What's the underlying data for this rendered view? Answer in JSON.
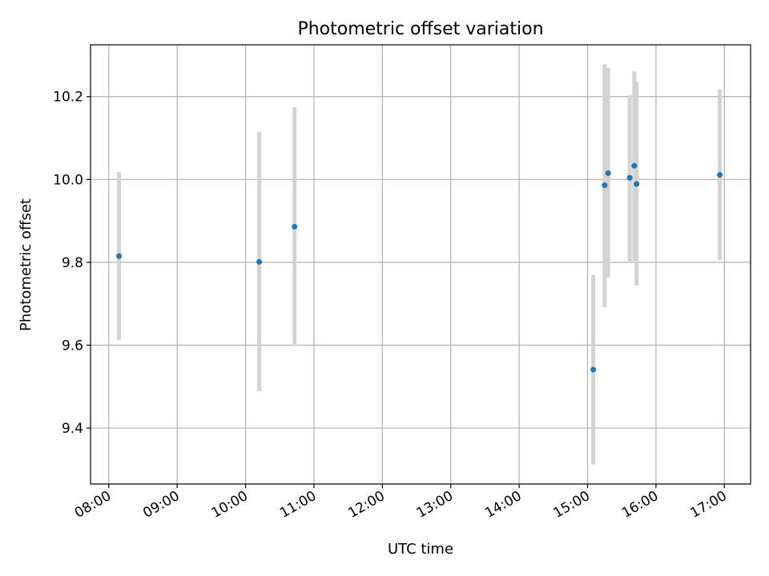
{
  "chart_data": {
    "type": "scatter",
    "title": "Photometric offset variation",
    "xlabel": "UTC time",
    "ylabel": "Photometric offset",
    "x_unit": "hours UTC",
    "xlim": [
      "07:44",
      "17:23"
    ],
    "ylim": [
      9.265,
      10.325
    ],
    "grid": true,
    "x_ticks": [
      "08:00",
      "09:00",
      "10:00",
      "11:00",
      "12:00",
      "13:00",
      "14:00",
      "15:00",
      "16:00",
      "17:00"
    ],
    "y_ticks": [
      "9.4",
      "9.6",
      "9.8",
      "10.0",
      "10.2"
    ],
    "marker_color": "#1f77b4",
    "errorbar_color": "#d3d3d3",
    "points": [
      {
        "time": "08:09",
        "y": 9.815,
        "y_low": 9.612,
        "y_high": 10.018
      },
      {
        "time": "10:12",
        "y": 9.801,
        "y_low": 9.489,
        "y_high": 10.115
      },
      {
        "time": "10:43",
        "y": 9.886,
        "y_low": 9.598,
        "y_high": 10.174
      },
      {
        "time": "15:05",
        "y": 9.541,
        "y_low": 9.312,
        "y_high": 9.77
      },
      {
        "time": "15:15",
        "y": 9.986,
        "y_low": 9.692,
        "y_high": 10.278
      },
      {
        "time": "15:18",
        "y": 10.015,
        "y_low": 9.763,
        "y_high": 10.269
      },
      {
        "time": "15:37",
        "y": 10.004,
        "y_low": 9.8,
        "y_high": 10.204
      },
      {
        "time": "15:41",
        "y": 10.033,
        "y_low": 9.804,
        "y_high": 10.261
      },
      {
        "time": "15:43",
        "y": 9.989,
        "y_low": 9.744,
        "y_high": 10.235
      },
      {
        "time": "16:56",
        "y": 10.011,
        "y_low": 9.806,
        "y_high": 10.217
      }
    ]
  }
}
